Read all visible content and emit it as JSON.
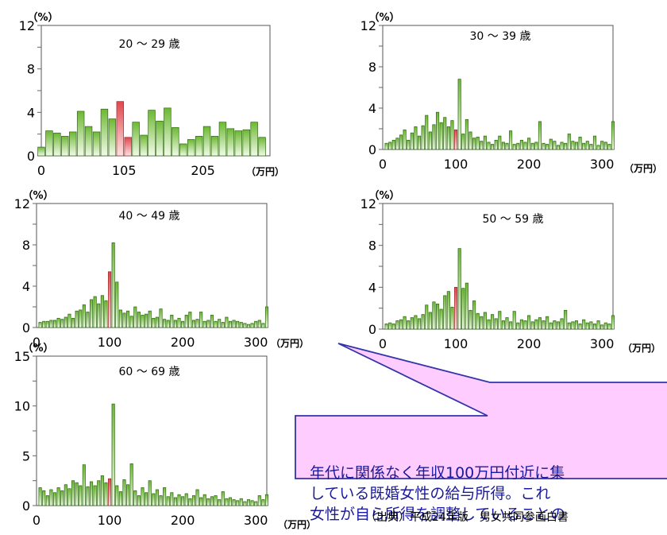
{
  "callout": {
    "lines": [
      "年代に関係なく年収100万円付近に集",
      "している既婚女性の給与所得。これ",
      "女性が自ら所得を調整していることの"
    ]
  },
  "source": "（出典）平成24年版　男女共同参画白書",
  "colors": {
    "bar_green": "#7fc241",
    "bar_red": "#e86a6a",
    "callout_fill": "#ffccff",
    "callout_border": "#3333aa",
    "callout_text": "#1a1a9a"
  },
  "chart_data": [
    {
      "type": "bar",
      "title": "20 ～ 29 歳",
      "ylabel": "（%）",
      "xunit": "（万円）",
      "ylim": [
        0,
        12
      ],
      "yticks": [
        0,
        4,
        8,
        12
      ],
      "xticks": [
        {
          "value": 0,
          "label": "0"
        },
        {
          "value": 105,
          "label": "105"
        },
        {
          "value": 205,
          "label": "205"
        }
      ],
      "xmax": 290,
      "bar_width": 10,
      "x_start": 0,
      "highlight": [
        105
      ],
      "values": [
        0.8,
        2.3,
        2.1,
        1.8,
        2.2,
        4.1,
        2.7,
        2.2,
        4.3,
        3.4,
        5.0,
        1.7,
        3.1,
        1.9,
        4.2,
        3.2,
        4.4,
        2.6,
        1.1,
        1.5,
        1.8,
        2.7,
        1.8,
        3.1,
        2.5,
        2.3,
        2.4,
        3.1,
        1.7
      ]
    },
    {
      "type": "bar",
      "title": "30 ～ 39 歳",
      "ylabel": "（%）",
      "xunit": "（万円）",
      "ylim": [
        0,
        12
      ],
      "yticks": [
        0,
        4,
        8,
        12
      ],
      "xticks": [
        {
          "value": 0,
          "label": "0"
        },
        {
          "value": 100,
          "label": "100"
        },
        {
          "value": 200,
          "label": "200"
        },
        {
          "value": 300,
          "label": "300"
        }
      ],
      "xmax": 315,
      "bar_width": 5,
      "x_start": 5,
      "highlight": [
        100
      ],
      "values": [
        0.6,
        0.7,
        0.9,
        1.1,
        1.4,
        1.9,
        0.9,
        1.6,
        2.2,
        1.3,
        2.3,
        3.3,
        1.7,
        2.4,
        3.6,
        2.6,
        3.1,
        2.2,
        2.8,
        1.9,
        6.8,
        1.5,
        2.9,
        1.7,
        1.1,
        1.2,
        0.8,
        1.3,
        0.7,
        0.5,
        0.9,
        1.3,
        0.7,
        0.6,
        1.8,
        0.5,
        0.6,
        0.9,
        0.7,
        1.1,
        0.6,
        0.7,
        2.7,
        0.6,
        0.5,
        1.0,
        0.8,
        0.4,
        0.7,
        0.6,
        1.5,
        0.8,
        0.7,
        1.2,
        0.6,
        0.8,
        0.5,
        1.3,
        0.4,
        0.8,
        0.7,
        0.5,
        2.7
      ]
    },
    {
      "type": "bar",
      "title": "40 ～ 49 歳",
      "ylabel": "（%）",
      "xunit": "（万円）",
      "ylim": [
        0,
        12
      ],
      "yticks": [
        0,
        4,
        8,
        12
      ],
      "xticks": [
        {
          "value": 0,
          "label": "0"
        },
        {
          "value": 100,
          "label": "100"
        },
        {
          "value": 200,
          "label": "200"
        },
        {
          "value": 300,
          "label": "300"
        }
      ],
      "xmax": 315,
      "bar_width": 5,
      "x_start": 5,
      "highlight": [
        100
      ],
      "values": [
        0.5,
        0.6,
        0.6,
        0.7,
        0.7,
        0.9,
        0.8,
        1.0,
        1.3,
        0.9,
        1.6,
        1.7,
        2.2,
        1.5,
        2.7,
        3.0,
        2.3,
        3.1,
        2.6,
        5.4,
        8.2,
        4.4,
        1.7,
        1.4,
        1.6,
        1.1,
        2.0,
        1.5,
        1.2,
        1.3,
        1.6,
        0.9,
        1.0,
        1.8,
        0.8,
        0.7,
        1.2,
        0.7,
        0.9,
        0.6,
        1.2,
        1.5,
        0.7,
        0.8,
        1.5,
        0.6,
        0.7,
        1.2,
        0.6,
        0.8,
        0.5,
        1.0,
        0.6,
        0.7,
        0.6,
        0.5,
        0.4,
        0.3,
        0.4,
        0.6,
        0.7,
        0.4,
        2.0
      ]
    },
    {
      "type": "bar",
      "title": "50 ～ 59 歳",
      "ylabel": "（%）",
      "xunit": "（万円）",
      "ylim": [
        0,
        12
      ],
      "yticks": [
        0,
        4,
        8,
        12
      ],
      "xticks": [
        {
          "value": 0,
          "label": "0"
        },
        {
          "value": 100,
          "label": "100"
        },
        {
          "value": 200,
          "label": "200"
        },
        {
          "value": 300,
          "label": "300"
        }
      ],
      "xmax": 315,
      "bar_width": 5,
      "x_start": 5,
      "highlight": [
        100
      ],
      "values": [
        0.5,
        0.6,
        0.5,
        0.8,
        0.9,
        1.2,
        0.8,
        1.1,
        1.3,
        1.0,
        1.4,
        2.3,
        1.6,
        2.6,
        2.4,
        1.9,
        3.2,
        3.6,
        2.1,
        4.0,
        7.7,
        3.9,
        4.4,
        1.8,
        2.7,
        1.5,
        1.2,
        1.6,
        0.9,
        1.4,
        1.0,
        1.7,
        0.8,
        1.1,
        0.7,
        1.7,
        0.6,
        0.9,
        0.8,
        1.3,
        0.7,
        0.9,
        1.1,
        0.8,
        1.2,
        0.6,
        0.8,
        0.7,
        1.0,
        1.8,
        0.6,
        0.7,
        0.8,
        0.5,
        0.9,
        0.6,
        0.7,
        0.5,
        0.8,
        0.4,
        0.6,
        0.5,
        1.3
      ]
    },
    {
      "type": "bar",
      "title": "60 ～ 69 歳",
      "ylabel": "（%）",
      "xunit": "（万円）",
      "ylim": [
        0,
        15
      ],
      "yticks": [
        0,
        5,
        10,
        15
      ],
      "xticks": [
        {
          "value": 0,
          "label": "0"
        },
        {
          "value": 100,
          "label": "100"
        },
        {
          "value": 200,
          "label": "200"
        },
        {
          "value": 300,
          "label": "300"
        }
      ],
      "xmax": 315,
      "bar_width": 5,
      "x_start": 5,
      "highlight": [
        100
      ],
      "values": [
        1.8,
        1.5,
        1.0,
        1.6,
        1.3,
        1.8,
        1.5,
        2.1,
        1.7,
        2.5,
        2.3,
        2.0,
        4.1,
        1.9,
        2.4,
        2.0,
        2.5,
        3.0,
        2.3,
        2.7,
        10.2,
        2.0,
        1.4,
        2.6,
        2.1,
        4.2,
        1.5,
        1.0,
        1.8,
        1.3,
        2.5,
        1.2,
        1.6,
        1.0,
        1.8,
        0.9,
        1.3,
        0.8,
        1.1,
        0.9,
        1.2,
        0.7,
        1.0,
        1.6,
        0.8,
        1.1,
        0.7,
        0.9,
        1.0,
        0.6,
        1.4,
        0.7,
        0.8,
        0.6,
        0.5,
        0.7,
        0.4,
        0.6,
        0.5,
        0.4,
        1.0,
        0.6,
        1.1
      ]
    }
  ]
}
